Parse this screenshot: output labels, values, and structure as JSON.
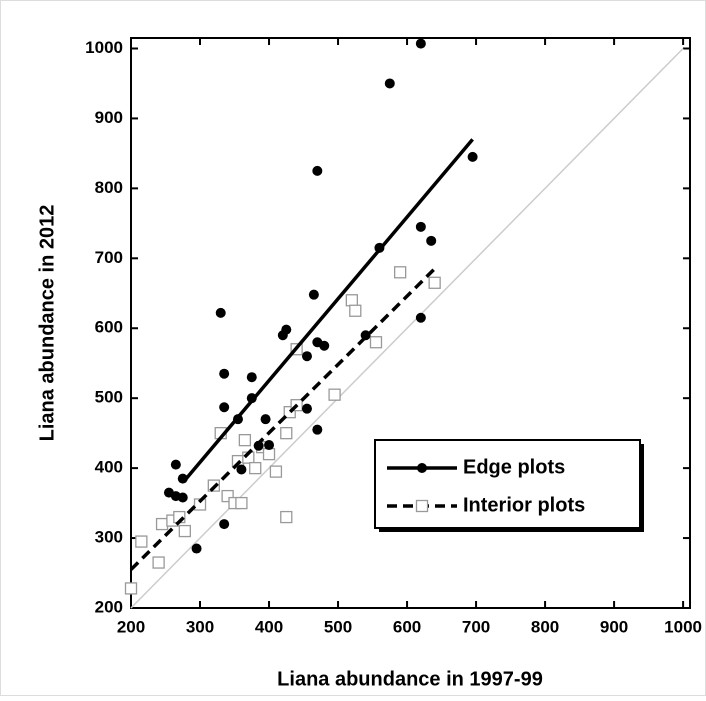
{
  "chart_data": {
    "type": "scatter",
    "xlabel": "Liana abundance in 1997-99",
    "ylabel": "Liana abundance in 2012",
    "xlim": [
      200,
      1010
    ],
    "ylim": [
      200,
      1015
    ],
    "xticks": [
      200,
      300,
      400,
      500,
      600,
      700,
      800,
      900,
      1000
    ],
    "yticks": [
      200,
      300,
      400,
      500,
      600,
      700,
      800,
      900,
      1000
    ],
    "legend": "lower right",
    "identity_line": {
      "x": [
        200,
        1000
      ],
      "values": [
        200,
        1000
      ],
      "color": "#cccccc"
    },
    "series": [
      {
        "name": "Edge plots",
        "color": "#000000",
        "marker": "circle",
        "x": [
          620,
          575,
          470,
          695,
          620,
          560,
          635,
          465,
          420,
          425,
          330,
          470,
          480,
          455,
          540,
          620,
          335,
          375,
          335,
          375,
          395,
          385,
          400,
          355,
          455,
          470,
          265,
          275,
          255,
          265,
          275,
          360,
          335,
          295
        ],
        "values": [
          1007,
          950,
          825,
          845,
          745,
          715,
          725,
          648,
          590,
          598,
          622,
          580,
          575,
          560,
          590,
          615,
          535,
          530,
          487,
          500,
          470,
          432,
          433,
          470,
          485,
          455,
          405,
          385,
          365,
          360,
          358,
          398,
          320,
          285
        ],
        "fit": {
          "x": [
            280,
            695
          ],
          "values": [
            385,
            870
          ],
          "color": "#000000",
          "dashed": false
        }
      },
      {
        "name": "Interior plots",
        "color": "#999999",
        "marker": "square",
        "x": [
          200,
          215,
          240,
          245,
          260,
          270,
          278,
          300,
          320,
          330,
          340,
          350,
          360,
          355,
          370,
          380,
          365,
          390,
          400,
          410,
          425,
          430,
          440,
          425,
          440,
          495,
          520,
          525,
          555,
          590,
          640
        ],
        "values": [
          228,
          295,
          265,
          320,
          325,
          330,
          310,
          348,
          375,
          450,
          360,
          350,
          350,
          410,
          415,
          400,
          440,
          430,
          420,
          395,
          450,
          480,
          490,
          330,
          570,
          505,
          640,
          625,
          580,
          680,
          665
        ],
        "fit": {
          "x": [
            200,
            640
          ],
          "values": [
            255,
            685
          ],
          "color": "#000000",
          "dashed": true
        }
      }
    ]
  }
}
